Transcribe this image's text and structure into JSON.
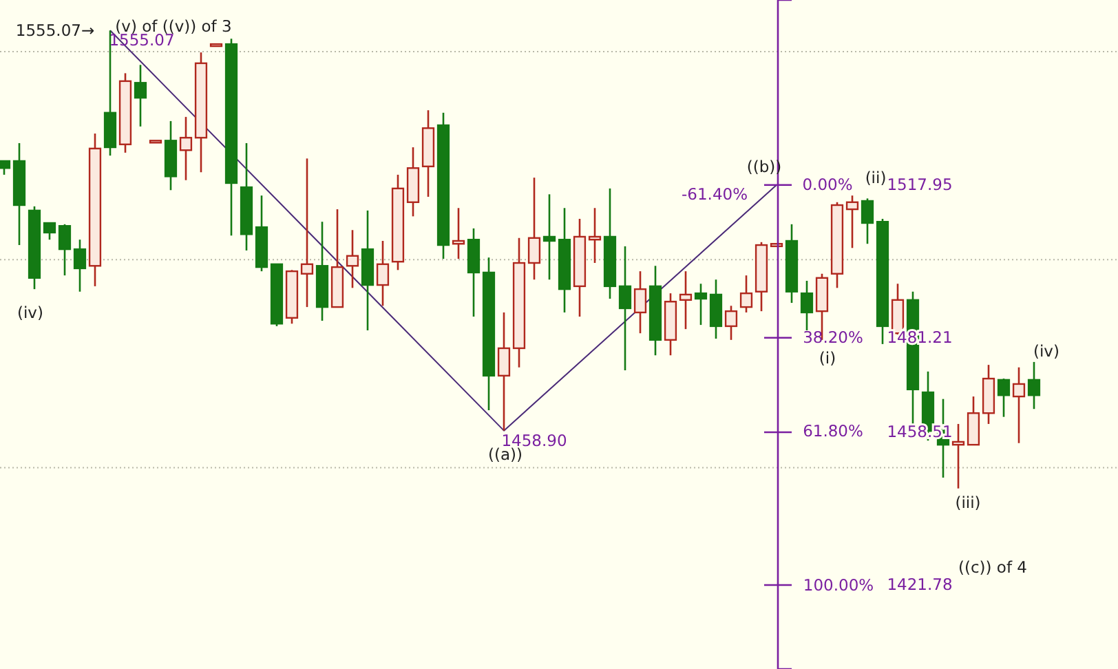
{
  "chart_data": {
    "type": "candlestick",
    "categories": [
      null,
      null,
      null,
      null,
      null,
      null,
      null,
      null,
      null,
      null,
      null,
      null,
      null,
      null,
      null,
      null,
      null,
      null,
      null,
      null,
      null,
      null,
      null,
      null,
      null,
      null,
      null,
      null,
      null,
      null,
      null,
      null,
      null,
      null,
      null,
      null,
      null,
      null,
      null,
      null,
      null,
      null,
      null,
      null,
      null,
      null,
      null,
      null,
      null,
      null,
      null,
      null,
      null,
      null,
      null,
      null,
      null,
      null,
      null,
      null,
      null,
      null,
      null,
      null,
      null,
      null,
      null,
      null,
      null
    ],
    "ohlc": [
      [
        1523.7,
        1523.7,
        1520.4,
        1522.0
      ],
      [
        1523.7,
        1528.0,
        1503.5,
        1513.1
      ],
      [
        1511.8,
        1512.8,
        1492.9,
        1495.6
      ],
      [
        1508.8,
        1508.8,
        1504.8,
        1506.5
      ],
      [
        1508.1,
        1508.5,
        1496.2,
        1502.5
      ],
      [
        1502.5,
        1504.8,
        1492.3,
        1497.9
      ],
      [
        1498.5,
        1530.3,
        1493.6,
        1526.7
      ],
      [
        1535.3,
        1555.07,
        1525.0,
        1527.0
      ],
      [
        1527.7,
        1544.8,
        1525.7,
        1542.9
      ],
      [
        1542.5,
        1546.8,
        1532.0,
        1538.9
      ],
      [
        1528.6,
        1528.6,
        1528.6,
        1528.6
      ],
      [
        1528.6,
        1533.3,
        1516.7,
        1520.0
      ],
      [
        1526.3,
        1534.3,
        1519.1,
        1529.3
      ],
      [
        1529.3,
        1549.8,
        1521.0,
        1547.2
      ],
      [
        1551.8,
        1551.8,
        1551.8,
        1551.8
      ],
      [
        1551.8,
        1553.1,
        1505.8,
        1518.4
      ],
      [
        1517.4,
        1528.0,
        1502.2,
        1506.1
      ],
      [
        1507.8,
        1515.4,
        1497.2,
        1498.2
      ],
      [
        1498.9,
        1498.9,
        1484.0,
        1484.6
      ],
      [
        1486.0,
        1497.5,
        1484.6,
        1497.2
      ],
      [
        1496.6,
        1524.3,
        1488.6,
        1498.9
      ],
      [
        1498.5,
        1509.1,
        1485.3,
        1488.6
      ],
      [
        1488.6,
        1512.1,
        1488.6,
        1498.2
      ],
      [
        1498.5,
        1507.1,
        1493.2,
        1500.9
      ],
      [
        1502.5,
        1511.8,
        1483.0,
        1493.9
      ],
      [
        1493.9,
        1504.5,
        1488.9,
        1498.9
      ],
      [
        1499.5,
        1520.4,
        1497.5,
        1517.1
      ],
      [
        1513.8,
        1527.0,
        1510.4,
        1522.0
      ],
      [
        1522.4,
        1535.9,
        1515.1,
        1531.6
      ],
      [
        1532.3,
        1535.3,
        1500.2,
        1503.5
      ],
      [
        1503.8,
        1512.4,
        1500.2,
        1504.5
      ],
      [
        1504.8,
        1507.5,
        1486.3,
        1496.9
      ],
      [
        1496.9,
        1500.5,
        1463.8,
        1472.1
      ],
      [
        1472.1,
        1487.3,
        1458.9,
        1478.7
      ],
      [
        1478.7,
        1505.2,
        1474.1,
        1499.2
      ],
      [
        1499.2,
        1519.7,
        1495.2,
        1505.2
      ],
      [
        1505.5,
        1515.7,
        1495.2,
        1504.5
      ],
      [
        1504.8,
        1512.4,
        1487.3,
        1492.9
      ],
      [
        1493.6,
        1509.8,
        1486.3,
        1505.5
      ],
      [
        1504.8,
        1512.4,
        1499.2,
        1505.5
      ],
      [
        1505.5,
        1517.1,
        1490.6,
        1493.6
      ],
      [
        1493.6,
        1503.2,
        1473.4,
        1488.3
      ],
      [
        1487.3,
        1497.2,
        1482.3,
        1492.9
      ],
      [
        1493.6,
        1498.5,
        1477.0,
        1480.7
      ],
      [
        1480.7,
        1491.9,
        1477.0,
        1489.9
      ],
      [
        1490.3,
        1497.2,
        1483.3,
        1491.6
      ],
      [
        1491.9,
        1494.2,
        1484.3,
        1490.6
      ],
      [
        1491.6,
        1495.2,
        1481.0,
        1484.0
      ],
      [
        1484.0,
        1488.9,
        1480.7,
        1487.6
      ],
      [
        1488.6,
        1496.2,
        1487.3,
        1491.9
      ],
      [
        1492.3,
        1504.2,
        1487.6,
        1503.5
      ],
      [
        1503.2,
        1503.8,
        1503.2,
        1503.8
      ],
      [
        1504.5,
        1508.5,
        1489.6,
        1492.3
      ],
      [
        1491.9,
        1494.9,
        1483.0,
        1487.3
      ],
      [
        1487.6,
        1496.6,
        1480.7,
        1495.6
      ],
      [
        1496.6,
        1513.8,
        1493.2,
        1513.1
      ],
      [
        1512.1,
        1515.4,
        1502.8,
        1513.8
      ],
      [
        1514.1,
        1514.7,
        1503.8,
        1508.8
      ],
      [
        1509.1,
        1509.8,
        1479.7,
        1484.0
      ],
      [
        1482.3,
        1494.2,
        1482.0,
        1490.3
      ],
      [
        1490.3,
        1492.3,
        1460.5,
        1468.8
      ],
      [
        1468.1,
        1473.1,
        1456.5,
        1458.8
      ],
      [
        1459.2,
        1466.5,
        1447.6,
        1455.5
      ],
      [
        1455.5,
        1460.5,
        1445.0,
        1456.2
      ],
      [
        1455.5,
        1467.1,
        1455.5,
        1463.1
      ],
      [
        1463.1,
        1474.7,
        1460.5,
        1471.4
      ],
      [
        1471.1,
        1471.4,
        1462.2,
        1467.4
      ],
      [
        1467.1,
        1474.1,
        1455.9,
        1470.1
      ],
      [
        1471.1,
        1475.4,
        1464.1,
        1467.4
      ]
    ],
    "series": [
      {
        "type": "line",
        "color": "#4a2a78",
        "values": [
          null,
          null,
          null,
          null,
          null,
          null,
          null,
          1555.07,
          null,
          null,
          null,
          null,
          null,
          null,
          null,
          null,
          null,
          null,
          null,
          null,
          null,
          null,
          null,
          null,
          null,
          null,
          null,
          null,
          null,
          null,
          null,
          null,
          null,
          1458.9,
          null,
          null,
          null,
          null,
          null,
          null,
          null,
          null,
          null,
          null,
          null,
          null,
          null,
          null,
          null,
          null,
          null,
          1517.95,
          null,
          null,
          null,
          null,
          null,
          null,
          null,
          null,
          null,
          null,
          null,
          null,
          null,
          null,
          null,
          null,
          null
        ]
      }
    ],
    "ylim": [
      1401.6,
      1562.4
    ],
    "yticks": [
      1517.95,
      1481.21,
      1458.51,
      1421.78
    ],
    "ref_lines": [
      {
        "axis": "y",
        "value": 1450,
        "color": "#b8b8a8",
        "line_style": "dotted"
      },
      {
        "axis": "y",
        "value": 1500,
        "color": "#b8b8a8",
        "line_style": "dotted"
      },
      {
        "axis": "y",
        "value": 1550,
        "color": "#b8b8a8",
        "line_style": "dotted"
      }
    ],
    "annotations": [
      "1555.07→",
      "(v) of ((v)) of 3",
      "1555.07",
      "(iv)",
      "1458.90",
      "((a))",
      "((b))",
      "-61.40%",
      "(ii)",
      "(i)",
      "(iii)",
      "(iv)",
      "((c)) of 4",
      "0.00%",
      "38.20%",
      "61.80%",
      "100.00%"
    ]
  }
}
